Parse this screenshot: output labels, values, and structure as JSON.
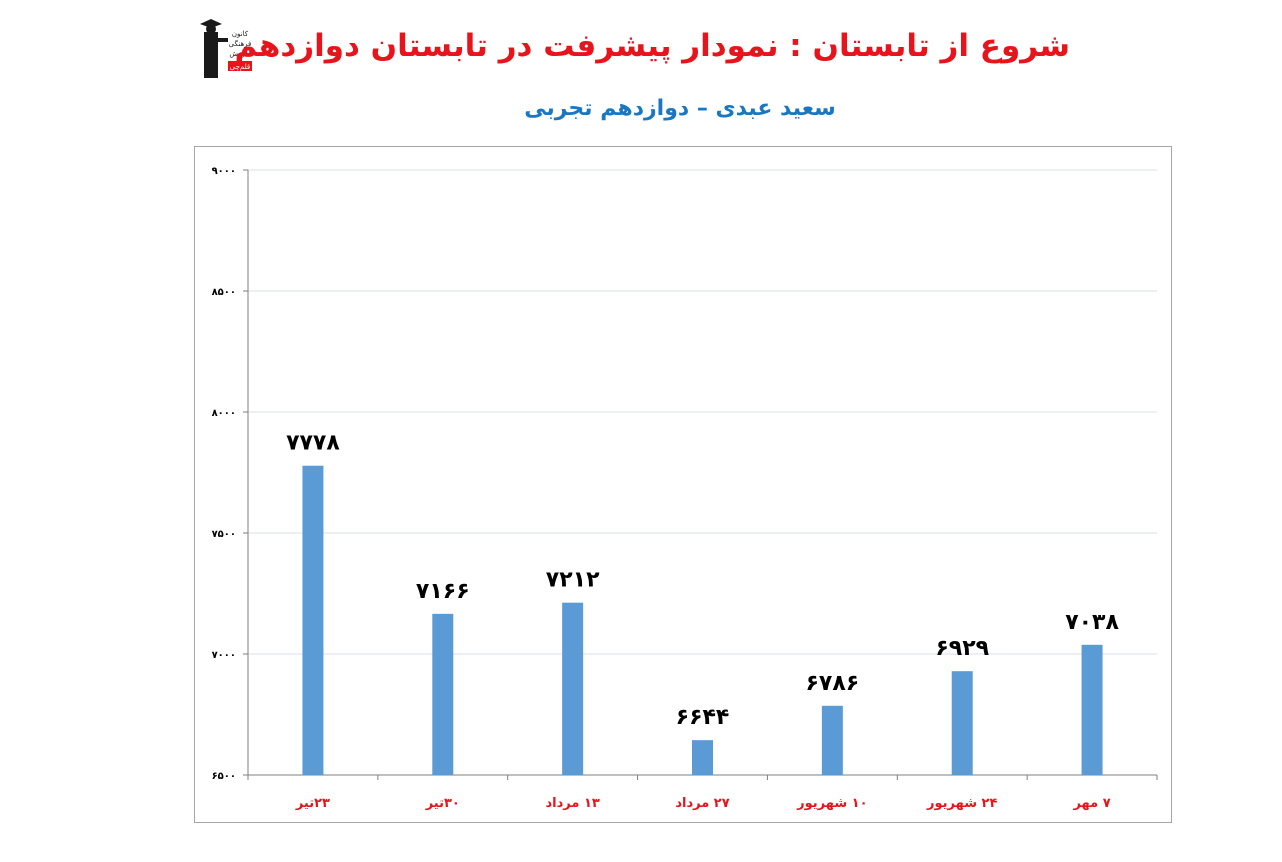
{
  "header": {
    "title": "شروع از تابستان : نمودار پیشرفت در تابستان دوازدهم",
    "subtitle": "سعید عبدی – دوازدهم تجربی"
  },
  "logo": {
    "icon": "graduate-logo-icon",
    "lines": [
      "کانون",
      "فرهنگی",
      "آموزش",
      "قلم‌چی"
    ]
  },
  "colors": {
    "title": "#e8141b",
    "subtitle": "#1a78c2",
    "bar": "#5b9bd5",
    "category_labels": "#e8141b",
    "gridline": "#d9e2ea"
  },
  "chart_data": {
    "type": "bar",
    "categories": [
      "۲۳تیر",
      "۳۰تیر",
      "۱۳ مرداد",
      "۲۷ مرداد",
      "۱۰ شهریور",
      "۲۴ شهریور",
      "۷ مهر"
    ],
    "values": [
      7778,
      7166,
      7212,
      6644,
      6786,
      6929,
      7038
    ],
    "value_labels": [
      "۷۷۷۸",
      "۷۱۶۶",
      "۷۲۱۲",
      "۶۶۴۴",
      "۶۷۸۶",
      "۶۹۲۹",
      "۷۰۳۸"
    ],
    "ylim": [
      6500,
      9000
    ],
    "yticks": [
      6500,
      7000,
      7500,
      8000,
      8500,
      9000
    ],
    "ytick_labels": [
      "۶۵۰۰",
      "۷۰۰۰",
      "۷۵۰۰",
      "۸۰۰۰",
      "۸۵۰۰",
      "۹۰۰۰"
    ],
    "title": "",
    "xlabel": "",
    "ylabel": "",
    "grid": true,
    "legend": "none"
  }
}
